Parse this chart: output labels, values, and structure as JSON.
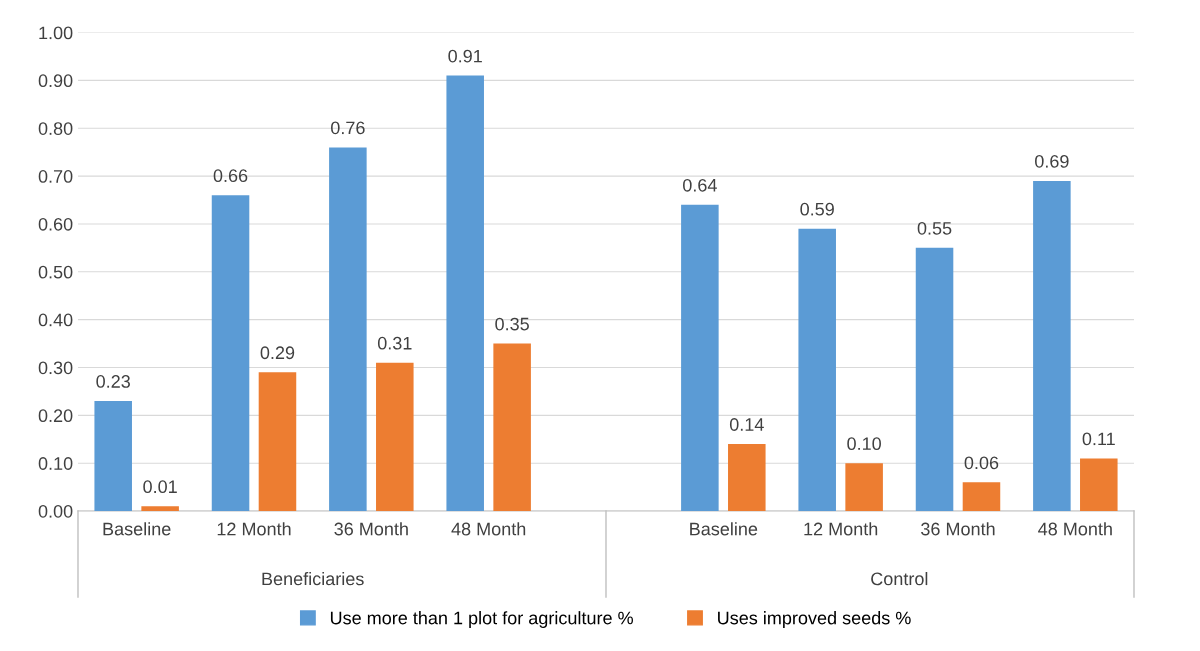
{
  "chart_data": {
    "type": "bar",
    "categories": [
      "Baseline",
      "12 Month",
      "36 Month",
      "48 Month",
      null,
      "Baseline",
      "12 Month",
      "36 Month",
      "48 Month"
    ],
    "series": [
      {
        "name": "Use more than 1 plot for agriculture %",
        "color": "#5b9bd5",
        "values": [
          0.23,
          0.66,
          0.76,
          0.91,
          null,
          0.64,
          0.59,
          0.55,
          0.69
        ],
        "value_labels": [
          "0.23",
          "0.66",
          "0.76",
          "0.91",
          null,
          "0.64",
          "0.59",
          "0.55",
          "0.69"
        ]
      },
      {
        "name": "Uses improved seeds %",
        "color": "#ed7d31",
        "values": [
          0.01,
          0.29,
          0.31,
          0.35,
          null,
          0.14,
          0.1,
          0.06,
          0.11
        ],
        "value_labels": [
          "0.01",
          "0.29",
          "0.31",
          "0.35",
          null,
          "0.14",
          "0.10",
          "0.06",
          "0.11"
        ]
      }
    ],
    "ylim": [
      0,
      1
    ],
    "yticks": [
      {
        "value": 0,
        "label": "0.00"
      },
      {
        "value": 0.1,
        "label": "0.10"
      },
      {
        "value": 0.2,
        "label": "0.20"
      },
      {
        "value": 0.3,
        "label": "0.30"
      },
      {
        "value": 0.4,
        "label": "0.40"
      },
      {
        "value": 0.5,
        "label": "0.50"
      },
      {
        "value": 0.6,
        "label": "0.60"
      },
      {
        "value": 0.7,
        "label": "0.70"
      },
      {
        "value": 0.8,
        "label": "0.80"
      },
      {
        "value": 0.9,
        "label": "0.90"
      },
      {
        "value": 1,
        "label": "1.00"
      }
    ],
    "annotations": [
      "Beneficiaries",
      "Control"
    ],
    "grid": "y",
    "legend": "bottom"
  }
}
